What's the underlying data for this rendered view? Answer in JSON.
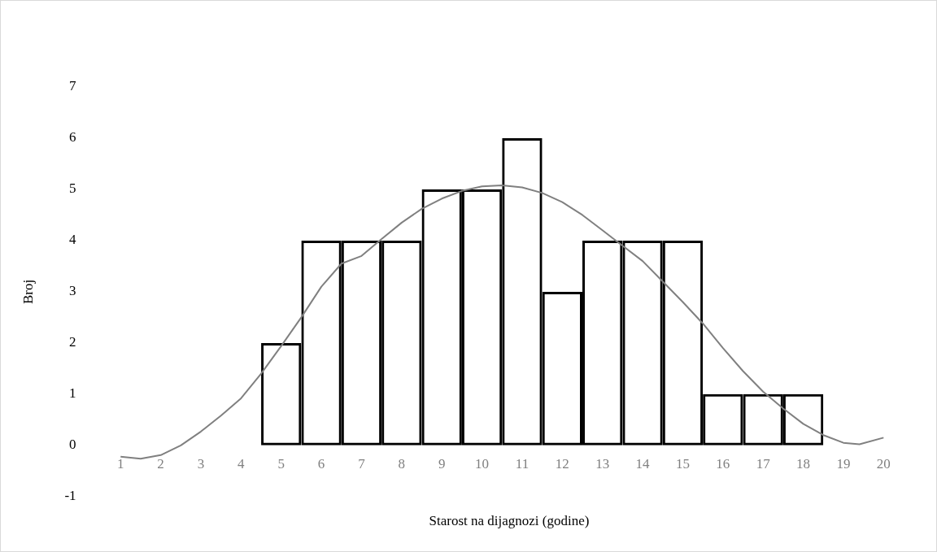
{
  "chart_data": {
    "type": "bar",
    "xlabel": "Starost na dijagnozi (godine)",
    "ylabel": "Broj",
    "series": [
      {
        "color": "#000000",
        "x": [
          5,
          6,
          7,
          8,
          9,
          10,
          11,
          12,
          13,
          14,
          15,
          16,
          17,
          18
        ],
        "values": [
          2,
          4,
          4,
          4,
          5,
          5,
          6,
          3,
          4,
          4,
          4,
          1,
          1,
          1
        ]
      },
      {
        "type": "line",
        "color": "#808080",
        "x": [
          1,
          1.5,
          2,
          2.5,
          3,
          3.5,
          4,
          4.5,
          5,
          5.5,
          6,
          6.5,
          7,
          7.5,
          8,
          8.5,
          9,
          9.5,
          10,
          10.5,
          11,
          11.5,
          12,
          12.5,
          13,
          13.5,
          14,
          14.5,
          15,
          15.5,
          16,
          16.5,
          17,
          17.5,
          18,
          18.5,
          19,
          19.4,
          20
        ],
        "values": [
          -0.22,
          -0.26,
          -0.19,
          0,
          0.27,
          0.58,
          0.92,
          1.4,
          1.94,
          2.5,
          3.1,
          3.55,
          3.7,
          4.03,
          4.35,
          4.62,
          4.82,
          4.97,
          5.06,
          5.08,
          5.04,
          4.93,
          4.75,
          4.5,
          4.2,
          3.9,
          3.6,
          3.2,
          2.8,
          2.38,
          1.9,
          1.45,
          1.05,
          0.72,
          0.42,
          0.2,
          0.05,
          0.02,
          0.15
        ]
      }
    ],
    "xlim": [
      1,
      20
    ],
    "xticks": [
      1,
      2,
      3,
      4,
      5,
      6,
      7,
      8,
      9,
      10,
      11,
      12,
      13,
      14,
      15,
      16,
      17,
      18,
      19,
      20
    ],
    "ylim": [
      -1,
      7
    ],
    "yticks": [
      -1,
      0,
      1,
      2,
      3,
      4,
      5,
      6,
      7
    ],
    "grid": false,
    "legend": false,
    "marker": "none",
    "line_style": "solid"
  }
}
